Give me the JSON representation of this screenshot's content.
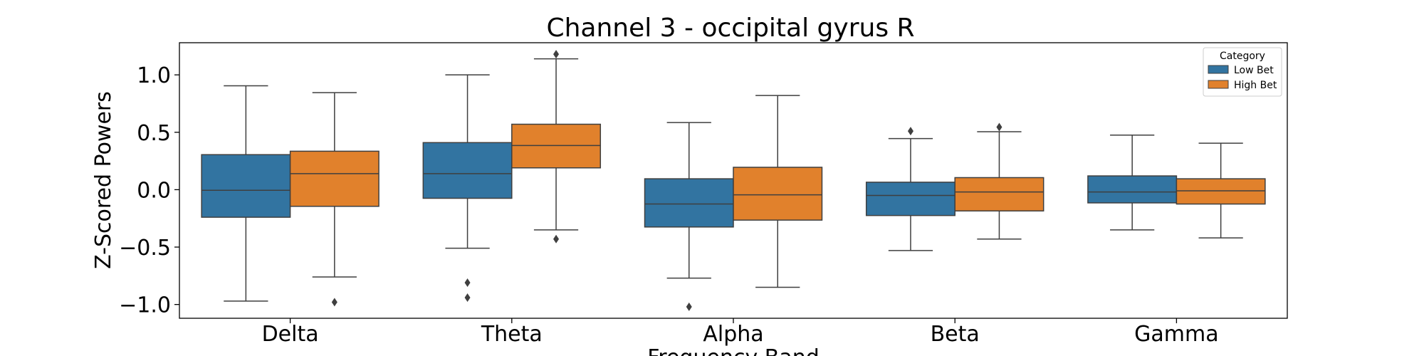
{
  "chart_data": {
    "type": "box",
    "title": "Channel 3 - occipital gyrus R",
    "xlabel": "Frequency Band",
    "ylabel": "Z-Scored Powers",
    "ylim": [
      -1.12,
      1.28
    ],
    "yticks": [
      1.0,
      0.5,
      0.0,
      -0.5,
      -1.0
    ],
    "ytick_labels": [
      "1.0",
      "0.5",
      "0.0",
      "−0.5",
      "−1.0"
    ],
    "categories": [
      "Delta",
      "Theta",
      "Alpha",
      "Beta",
      "Gamma"
    ],
    "legend": {
      "title": "Category",
      "placement": "top-right"
    },
    "series": [
      {
        "name": "Low Bet",
        "color": "#3274a1",
        "boxes": [
          {
            "whislo": -0.97,
            "q1": -0.24,
            "med": -0.005,
            "q3": 0.305,
            "whishi": 0.905,
            "fliers": []
          },
          {
            "whislo": -0.51,
            "q1": -0.075,
            "med": 0.14,
            "q3": 0.41,
            "whishi": 1.0,
            "fliers": [
              -0.81,
              -0.94
            ]
          },
          {
            "whislo": -0.77,
            "q1": -0.325,
            "med": -0.125,
            "q3": 0.095,
            "whishi": 0.585,
            "fliers": [
              -1.02
            ]
          },
          {
            "whislo": -0.53,
            "q1": -0.225,
            "med": -0.05,
            "q3": 0.065,
            "whishi": 0.445,
            "fliers": [
              0.51
            ]
          },
          {
            "whislo": -0.35,
            "q1": -0.115,
            "med": -0.02,
            "q3": 0.12,
            "whishi": 0.475,
            "fliers": []
          }
        ]
      },
      {
        "name": "High Bet",
        "color": "#e1812c",
        "boxes": [
          {
            "whislo": -0.76,
            "q1": -0.145,
            "med": 0.14,
            "q3": 0.335,
            "whishi": 0.845,
            "fliers": [
              -0.98
            ]
          },
          {
            "whislo": -0.35,
            "q1": 0.19,
            "med": 0.385,
            "q3": 0.57,
            "whishi": 1.14,
            "fliers": [
              1.18,
              -0.43
            ]
          },
          {
            "whislo": -0.85,
            "q1": -0.265,
            "med": -0.045,
            "q3": 0.195,
            "whishi": 0.82,
            "fliers": []
          },
          {
            "whislo": -0.43,
            "q1": -0.185,
            "med": -0.02,
            "q3": 0.105,
            "whishi": 0.505,
            "fliers": [
              0.545
            ]
          },
          {
            "whislo": -0.42,
            "q1": -0.125,
            "med": -0.01,
            "q3": 0.095,
            "whishi": 0.405,
            "fliers": []
          }
        ]
      }
    ]
  }
}
